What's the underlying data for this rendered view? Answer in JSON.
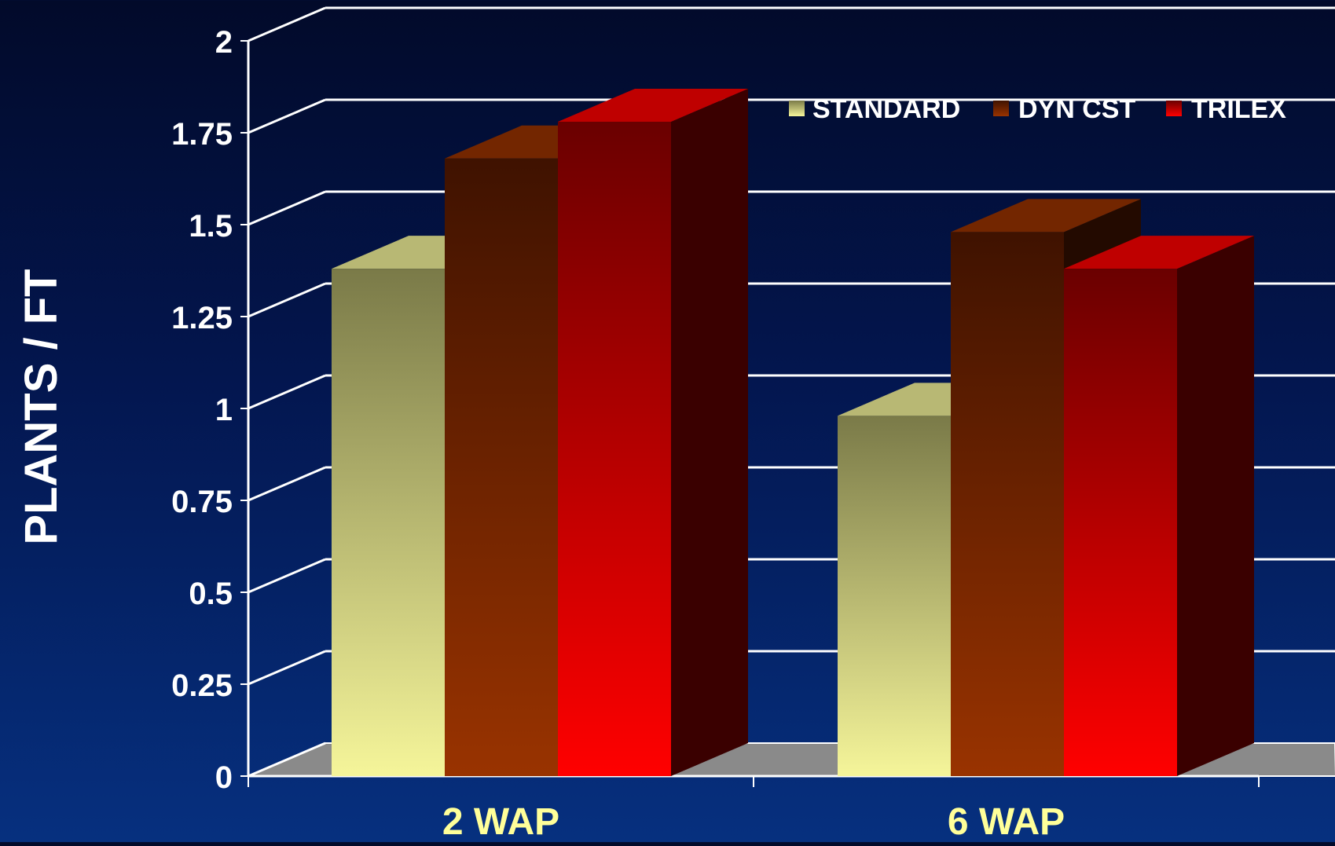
{
  "chart_data": {
    "type": "bar",
    "style": "3d-clustered",
    "categories": [
      "2 WAP",
      "6 WAP"
    ],
    "series": [
      {
        "name": "STANDARD",
        "values": [
          1.38,
          0.98
        ],
        "color": "#f5f59a",
        "dark": "#7a7a48"
      },
      {
        "name": "DYN CST",
        "values": [
          1.68,
          1.48
        ],
        "color": "#993300",
        "dark": "#3f1200"
      },
      {
        "name": "TRILEX",
        "values": [
          1.78,
          1.38
        ],
        "color": "#ff0000",
        "dark": "#6a0000"
      }
    ],
    "ylabel": "PLANTS / FT",
    "xlabel": "",
    "ylim": [
      0,
      2
    ],
    "yticks": [
      "0",
      "0.25",
      "0.5",
      "0.75",
      "1",
      "1.25",
      "1.5",
      "1.75",
      "2"
    ],
    "grid": true,
    "legend": "top-right",
    "colors": {
      "axis_text": "#ffffff",
      "category_text": "#ffff99",
      "grid": "#ffffff",
      "floor": "#8a8a8a"
    }
  }
}
